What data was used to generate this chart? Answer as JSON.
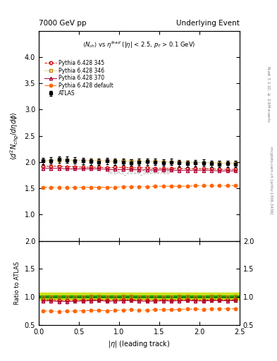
{
  "title_left": "7000 GeV pp",
  "title_right": "Underlying Event",
  "subtitle": "$\\langle N_{ch}\\rangle$ vs $\\eta^{lead}$ ($|\\eta|$ < 2.5, $p_{T}$ > 0.1 GeV)",
  "ylabel_main": "$\\langle d^2 N_{chg}/d\\eta d\\phi \\rangle$",
  "ylabel_ratio": "Ratio to ATLAS",
  "xlabel": "$|\\eta|$ (leading track)",
  "right_label_top": "Rivet 3.1.10, $\\geq$ 2.6M events",
  "right_label_bottom": "mcplots.cern.ch [arXiv:1306.3436]",
  "watermark": "ATLAS_2010_S8894728",
  "xlim": [
    0,
    2.5
  ],
  "ylim_main": [
    0.5,
    4.5
  ],
  "ylim_ratio": [
    0.5,
    2.0
  ],
  "yticks_main": [
    1.0,
    1.5,
    2.0,
    2.5,
    3.0,
    3.5,
    4.0
  ],
  "yticks_ratio": [
    0.5,
    1.0,
    1.5,
    2.0
  ],
  "atlas_x": [
    0.05,
    0.15,
    0.25,
    0.35,
    0.45,
    0.55,
    0.65,
    0.75,
    0.85,
    0.95,
    1.05,
    1.15,
    1.25,
    1.35,
    1.45,
    1.55,
    1.65,
    1.75,
    1.85,
    1.95,
    2.05,
    2.15,
    2.25,
    2.35,
    2.45
  ],
  "atlas_y": [
    2.02,
    2.03,
    2.05,
    2.04,
    2.03,
    2.02,
    2.01,
    2.0,
    2.02,
    2.01,
    2.0,
    1.99,
    2.0,
    2.01,
    2.0,
    1.99,
    2.0,
    1.98,
    1.97,
    1.98,
    1.99,
    1.97,
    1.96,
    1.97,
    1.96
  ],
  "atlas_yerr": [
    0.06,
    0.06,
    0.06,
    0.06,
    0.06,
    0.06,
    0.06,
    0.06,
    0.06,
    0.06,
    0.06,
    0.06,
    0.06,
    0.06,
    0.06,
    0.06,
    0.06,
    0.06,
    0.06,
    0.06,
    0.06,
    0.06,
    0.06,
    0.06,
    0.06
  ],
  "p345_x": [
    0.05,
    0.15,
    0.25,
    0.35,
    0.45,
    0.55,
    0.65,
    0.75,
    0.85,
    0.95,
    1.05,
    1.15,
    1.25,
    1.35,
    1.45,
    1.55,
    1.65,
    1.75,
    1.85,
    1.95,
    2.05,
    2.15,
    2.25,
    2.35,
    2.45
  ],
  "p345_y": [
    1.92,
    1.92,
    1.92,
    1.91,
    1.91,
    1.9,
    1.9,
    1.9,
    1.89,
    1.9,
    1.9,
    1.89,
    1.89,
    1.89,
    1.88,
    1.88,
    1.88,
    1.88,
    1.87,
    1.87,
    1.87,
    1.87,
    1.86,
    1.86,
    1.86
  ],
  "p346_x": [
    0.05,
    0.15,
    0.25,
    0.35,
    0.45,
    0.55,
    0.65,
    0.75,
    0.85,
    0.95,
    1.05,
    1.15,
    1.25,
    1.35,
    1.45,
    1.55,
    1.65,
    1.75,
    1.85,
    1.95,
    2.05,
    2.15,
    2.25,
    2.35,
    2.45
  ],
  "p346_y": [
    2.02,
    2.03,
    2.04,
    2.04,
    2.03,
    2.03,
    2.03,
    2.03,
    2.02,
    2.02,
    2.02,
    2.02,
    2.01,
    2.01,
    2.01,
    2.0,
    2.0,
    2.0,
    2.0,
    1.99,
    1.99,
    1.99,
    1.98,
    1.98,
    1.98
  ],
  "p370_x": [
    0.05,
    0.15,
    0.25,
    0.35,
    0.45,
    0.55,
    0.65,
    0.75,
    0.85,
    0.95,
    1.05,
    1.15,
    1.25,
    1.35,
    1.45,
    1.55,
    1.65,
    1.75,
    1.85,
    1.95,
    2.05,
    2.15,
    2.25,
    2.35,
    2.45
  ],
  "p370_y": [
    1.88,
    1.88,
    1.88,
    1.87,
    1.87,
    1.87,
    1.87,
    1.87,
    1.86,
    1.86,
    1.86,
    1.86,
    1.85,
    1.85,
    1.85,
    1.85,
    1.85,
    1.84,
    1.84,
    1.84,
    1.84,
    1.84,
    1.83,
    1.83,
    1.83
  ],
  "pdef_x": [
    0.05,
    0.15,
    0.25,
    0.35,
    0.45,
    0.55,
    0.65,
    0.75,
    0.85,
    0.95,
    1.05,
    1.15,
    1.25,
    1.35,
    1.45,
    1.55,
    1.65,
    1.75,
    1.85,
    1.95,
    2.05,
    2.15,
    2.25,
    2.35,
    2.45
  ],
  "pdef_y": [
    1.52,
    1.52,
    1.52,
    1.52,
    1.52,
    1.52,
    1.52,
    1.52,
    1.52,
    1.52,
    1.53,
    1.53,
    1.53,
    1.53,
    1.54,
    1.54,
    1.54,
    1.54,
    1.54,
    1.55,
    1.55,
    1.55,
    1.55,
    1.55,
    1.55
  ],
  "color_atlas": "#000000",
  "color_p345": "#cc0000",
  "color_p346": "#bb8800",
  "color_p370": "#aa0033",
  "color_pdef": "#ff6600",
  "color_band_yellow": "#ccdd00",
  "color_band_green": "#00aa00",
  "ratio_band_yellow": [
    0.955,
    1.075
  ],
  "ratio_band_green": [
    0.985,
    1.025
  ],
  "legend_labels": [
    "ATLAS",
    "Pythia 6.428 345",
    "Pythia 6.428 346",
    "Pythia 6.428 370",
    "Pythia 6.428 default"
  ]
}
